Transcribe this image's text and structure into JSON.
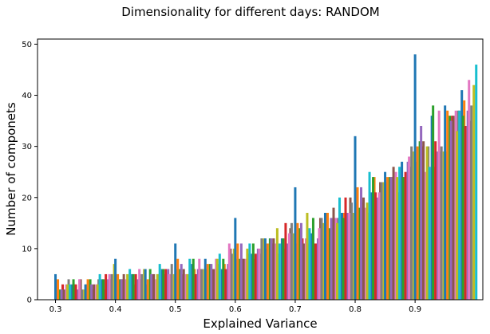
{
  "chart_data": {
    "type": "bar",
    "title": "Dimensionality for different days: RANDOM",
    "xlabel": "Explained Variance",
    "ylabel": "Number of componets",
    "xlim": [
      0.27,
      1.013
    ],
    "ylim": [
      0,
      51
    ],
    "xticks": [
      0.3,
      0.4,
      0.5,
      0.6,
      0.7,
      0.8,
      0.9
    ],
    "xtick_labels": [
      "0.3",
      "0.4",
      "0.5",
      "0.6",
      "0.7",
      "0.8",
      "0.9"
    ],
    "yticks": [
      0,
      10,
      20,
      30,
      40,
      50
    ],
    "ytick_labels": [
      "0",
      "10",
      "20",
      "30",
      "40",
      "50"
    ],
    "grid": false,
    "legend": "none",
    "bar_width": 0.004,
    "colors": [
      "#1f77b4",
      "#ff7f0e",
      "#2ca02c",
      "#d62728",
      "#9467bd",
      "#8c564b",
      "#e377c2",
      "#7f7f7f",
      "#bcbd22",
      "#17becf"
    ],
    "x": [
      0.3,
      0.31,
      0.32,
      0.33,
      0.34,
      0.35,
      0.36,
      0.37,
      0.38,
      0.39,
      0.4,
      0.41,
      0.42,
      0.43,
      0.44,
      0.45,
      0.46,
      0.47,
      0.48,
      0.49,
      0.5,
      0.51,
      0.52,
      0.53,
      0.54,
      0.55,
      0.56,
      0.57,
      0.58,
      0.59,
      0.6,
      0.61,
      0.62,
      0.63,
      0.64,
      0.65,
      0.66,
      0.67,
      0.68,
      0.69,
      0.7,
      0.71,
      0.72,
      0.73,
      0.74,
      0.75,
      0.76,
      0.77,
      0.78,
      0.79,
      0.8,
      0.81,
      0.82,
      0.83,
      0.84,
      0.85,
      0.86,
      0.87,
      0.88,
      0.89,
      0.9,
      0.91,
      0.92,
      0.93,
      0.94,
      0.95,
      0.96,
      0.97,
      0.98,
      0.99
    ],
    "series": [
      {
        "values": [
          5,
          2,
          3,
          4,
          4,
          3,
          3,
          3,
          4,
          5,
          8,
          4,
          5,
          5,
          6,
          6,
          5,
          5,
          6,
          5,
          11,
          7,
          5,
          8,
          8,
          8,
          7,
          8,
          8,
          11,
          16,
          11,
          10,
          11,
          10,
          12,
          12,
          14,
          12,
          13,
          22,
          15,
          17,
          16,
          14,
          17,
          16,
          15,
          16,
          17,
          32,
          22,
          19,
          24,
          21,
          25,
          24,
          24,
          24,
          28,
          48,
          34,
          30,
          38,
          37,
          38,
          35,
          33,
          36,
          43
        ]
      },
      {
        "values": [
          4,
          2,
          3,
          3,
          2,
          4,
          3,
          5,
          5,
          5,
          5,
          5,
          6,
          5,
          5,
          4,
          5,
          7,
          6,
          7,
          8,
          6,
          8,
          5,
          6,
          7,
          6,
          9,
          6,
          9,
          11,
          8,
          11,
          9,
          12,
          11,
          12,
          11,
          15,
          15,
          15,
          11,
          14,
          11,
          16,
          17,
          18,
          20,
          20,
          19,
          22,
          20,
          25,
          21,
          23,
          24,
          26,
          26,
          25,
          30,
          30,
          31,
          26,
          31,
          30,
          37,
          36,
          37,
          34,
          38
        ]
      },
      {
        "values": [
          2,
          3,
          3,
          2,
          2,
          4,
          3,
          4,
          4,
          7,
          4,
          4,
          5,
          4,
          6,
          6,
          4,
          6,
          6,
          5,
          6,
          5,
          7,
          6,
          6,
          7,
          8,
          6,
          7,
          10,
          8,
          8,
          9,
          10,
          12,
          12,
          11,
          12,
          11,
          13,
          14,
          12,
          13,
          12,
          15,
          14,
          16,
          17,
          17,
          17,
          18,
          18,
          21,
          20,
          23,
          24,
          25,
          27,
          27,
          29,
          31,
          25,
          36,
          29,
          29,
          36,
          37,
          41,
          37,
          42
        ]
      },
      {
        "values": [
          3,
          4,
          3,
          4,
          3,
          2,
          4,
          2,
          4,
          5,
          4,
          4,
          3,
          4,
          3,
          5,
          5,
          5,
          5,
          6,
          5,
          5,
          6,
          6,
          6,
          6,
          7,
          7,
          10,
          8,
          8,
          9,
          8,
          9,
          10,
          11,
          9,
          10,
          14,
          11,
          12,
          11,
          11,
          16,
          14,
          14,
          16,
          17,
          20,
          19,
          19,
          17,
          24,
          23,
          23,
          24,
          21,
          24,
          26,
          27,
          30,
          30,
          26,
          29,
          29,
          36,
          37,
          39,
          35,
          46
        ]
      }
    ]
  }
}
